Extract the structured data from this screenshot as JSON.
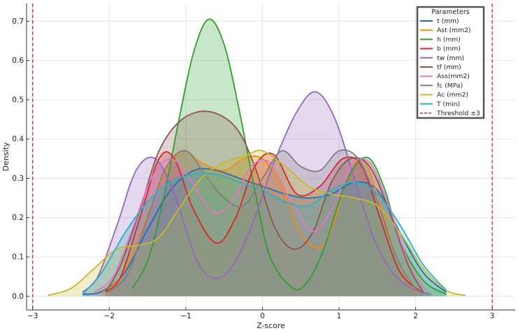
{
  "chart_data": {
    "type": "area",
    "xlabel": "Z-score",
    "ylabel": "Density",
    "xlim": [
      -3.08,
      3.3
    ],
    "ylim": [
      -0.035,
      0.745
    ],
    "xticks": [
      -3,
      -2,
      -1,
      0,
      1,
      2,
      3
    ],
    "xtick_labels": [
      "−3",
      "−2",
      "−1",
      "0",
      "1",
      "2",
      "3"
    ],
    "yticks": [
      0.0,
      0.1,
      0.2,
      0.3,
      0.4,
      0.5,
      0.6,
      0.7
    ],
    "ytick_labels": [
      "0.0",
      "0.1",
      "0.2",
      "0.3",
      "0.4",
      "0.5",
      "0.6",
      "0.7"
    ],
    "grid": true,
    "legend": {
      "title": "Parameters",
      "position": "top-right",
      "threshold_label": "Threshold ±3"
    },
    "threshold": {
      "values": [
        -3,
        3
      ],
      "color": "#e03131"
    },
    "series": [
      {
        "name": "t (mm)",
        "color": "#1f6fb5",
        "x": [
          -2.35,
          -2.1,
          -1.8,
          -1.5,
          -1.2,
          -0.9,
          -0.6,
          -0.3,
          0.0,
          0.3,
          0.6,
          0.9,
          1.2,
          1.5,
          1.8,
          2.1,
          2.4
        ],
        "y": [
          0.005,
          0.012,
          0.06,
          0.17,
          0.27,
          0.32,
          0.32,
          0.3,
          0.28,
          0.26,
          0.25,
          0.26,
          0.29,
          0.27,
          0.16,
          0.06,
          0.01
        ]
      },
      {
        "name": "Ast (mm2)",
        "color": "#f08c1a",
        "x": [
          -2.1,
          -1.85,
          -1.6,
          -1.3,
          -1.05,
          -0.8,
          -0.5,
          -0.25,
          0.0,
          0.25,
          0.5,
          0.8,
          1.1,
          1.3,
          1.5,
          1.75,
          2.0
        ],
        "y": [
          0.008,
          0.05,
          0.16,
          0.3,
          0.37,
          0.34,
          0.32,
          0.35,
          0.35,
          0.28,
          0.16,
          0.13,
          0.29,
          0.35,
          0.26,
          0.1,
          0.01
        ]
      },
      {
        "name": "h (mm)",
        "color": "#2ca02c",
        "x": [
          -1.7,
          -1.5,
          -1.3,
          -1.1,
          -0.9,
          -0.7,
          -0.5,
          -0.3,
          -0.1,
          0.1,
          0.4,
          0.6,
          0.8,
          1.0,
          1.2,
          1.4,
          1.6,
          1.8,
          2.1,
          2.4
        ],
        "y": [
          0.02,
          0.09,
          0.24,
          0.44,
          0.62,
          0.705,
          0.64,
          0.47,
          0.27,
          0.1,
          0.02,
          0.04,
          0.12,
          0.24,
          0.33,
          0.35,
          0.27,
          0.14,
          0.04,
          0.005
        ]
      },
      {
        "name": "b (mm)",
        "color": "#d62728",
        "x": [
          -2.05,
          -1.85,
          -1.6,
          -1.35,
          -1.15,
          -0.9,
          -0.6,
          -0.35,
          -0.1,
          0.15,
          0.45,
          0.75,
          1.05,
          1.3,
          1.55,
          1.8,
          2.1
        ],
        "y": [
          0.01,
          0.05,
          0.2,
          0.35,
          0.35,
          0.22,
          0.135,
          0.2,
          0.33,
          0.36,
          0.26,
          0.28,
          0.35,
          0.33,
          0.19,
          0.06,
          0.008
        ]
      },
      {
        "name": "tw (mm)",
        "color": "#9467bd",
        "x": [
          -2.35,
          -2.15,
          -1.9,
          -1.65,
          -1.4,
          -1.15,
          -0.85,
          -0.6,
          -0.35,
          -0.1,
          0.15,
          0.45,
          0.7,
          0.95,
          1.2,
          1.45,
          1.7,
          1.95,
          2.2
        ],
        "y": [
          0.01,
          0.05,
          0.18,
          0.32,
          0.35,
          0.26,
          0.09,
          0.045,
          0.09,
          0.2,
          0.34,
          0.47,
          0.52,
          0.45,
          0.3,
          0.15,
          0.06,
          0.02,
          0.005
        ]
      },
      {
        "name": "tf (mm)",
        "color": "#8c564b",
        "x": [
          -2.05,
          -1.85,
          -1.6,
          -1.35,
          -1.05,
          -0.7,
          -0.35,
          -0.1,
          0.15,
          0.4,
          0.65,
          0.9,
          1.15,
          1.4,
          1.65,
          1.9,
          2.1
        ],
        "y": [
          0.01,
          0.08,
          0.22,
          0.37,
          0.45,
          0.47,
          0.43,
          0.33,
          0.18,
          0.12,
          0.16,
          0.29,
          0.35,
          0.33,
          0.22,
          0.08,
          0.01
        ]
      },
      {
        "name": "Ass(mm2)",
        "color": "#e377c2",
        "x": [
          -2.2,
          -1.95,
          -1.7,
          -1.45,
          -1.2,
          -0.95,
          -0.65,
          -0.4,
          -0.15,
          0.1,
          0.35,
          0.65,
          0.9,
          1.15,
          1.4,
          1.65,
          1.9,
          2.15
        ],
        "y": [
          0.01,
          0.05,
          0.17,
          0.3,
          0.35,
          0.3,
          0.215,
          0.24,
          0.33,
          0.34,
          0.25,
          0.165,
          0.22,
          0.33,
          0.34,
          0.23,
          0.09,
          0.01
        ]
      },
      {
        "name": "fc (MPa)",
        "color": "#7f7f7f",
        "x": [
          -2.0,
          -1.75,
          -1.5,
          -1.25,
          -1.0,
          -0.75,
          -0.5,
          -0.25,
          0.0,
          0.25,
          0.5,
          0.75,
          1.0,
          1.25,
          1.5,
          1.75,
          2.0,
          2.2
        ],
        "y": [
          0.01,
          0.06,
          0.2,
          0.33,
          0.37,
          0.31,
          0.25,
          0.23,
          0.3,
          0.37,
          0.33,
          0.32,
          0.37,
          0.35,
          0.24,
          0.1,
          0.02,
          0.005
        ]
      },
      {
        "name": "Ac (mm2)",
        "color": "#c9b92a",
        "x": [
          -2.8,
          -2.5,
          -2.2,
          -1.9,
          -1.6,
          -1.35,
          -1.1,
          -0.8,
          -0.5,
          -0.2,
          0.0,
          0.3,
          0.6,
          0.9,
          1.2,
          1.5,
          1.8,
          2.1,
          2.4,
          2.65
        ],
        "y": [
          0.002,
          0.02,
          0.07,
          0.12,
          0.13,
          0.15,
          0.22,
          0.3,
          0.34,
          0.36,
          0.37,
          0.33,
          0.28,
          0.26,
          0.25,
          0.23,
          0.16,
          0.07,
          0.015,
          0.002
        ]
      },
      {
        "name": "T (min)",
        "color": "#2bb0c7",
        "x": [
          -2.35,
          -2.1,
          -1.8,
          -1.5,
          -1.2,
          -0.9,
          -0.6,
          -0.3,
          0.0,
          0.3,
          0.6,
          0.9,
          1.2,
          1.5,
          1.8,
          2.1,
          2.4
        ],
        "y": [
          0.005,
          0.06,
          0.16,
          0.24,
          0.29,
          0.31,
          0.31,
          0.29,
          0.27,
          0.24,
          0.23,
          0.27,
          0.29,
          0.26,
          0.18,
          0.08,
          0.015
        ]
      }
    ]
  }
}
